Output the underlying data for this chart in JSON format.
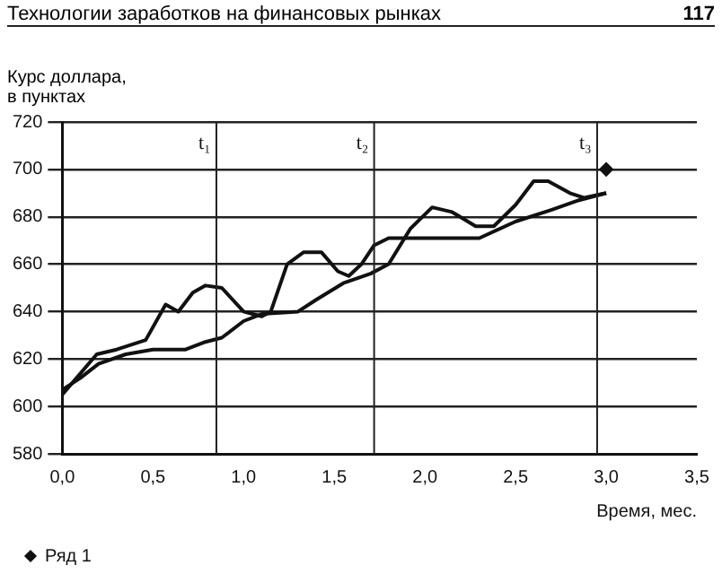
{
  "chart_data": {
    "type": "line",
    "title": "Технологии заработков на финансовых рынках",
    "annotations": [
      "117"
    ],
    "ylabel": "Курс доллара,\nв пунктах",
    "xlabel": "Время, мес.",
    "xlim": [
      0,
      3.5
    ],
    "xticks": [
      {
        "value": 0,
        "label": "0,0"
      },
      {
        "value": 0.5,
        "label": "0,5"
      },
      {
        "value": 1,
        "label": "1,0"
      },
      {
        "value": 1.5,
        "label": "1,5"
      },
      {
        "value": 2,
        "label": "2,0"
      },
      {
        "value": 2.5,
        "label": "2,5"
      },
      {
        "value": 3,
        "label": "3,0"
      },
      {
        "value": 3.5,
        "label": "3,5"
      }
    ],
    "ylim": [
      580,
      720
    ],
    "yticks": [
      580,
      600,
      620,
      640,
      660,
      680,
      700,
      720
    ],
    "grid": "y",
    "legend": "bottom left",
    "ref_lines": [
      {
        "axis": "x",
        "value": 0.85,
        "label": "t₁"
      },
      {
        "axis": "x",
        "value": 1.72,
        "label": "t₂"
      },
      {
        "axis": "x",
        "value": 2.95,
        "label": "t₃"
      }
    ],
    "series": [
      {
        "type": "line",
        "color": "#111111",
        "marker": "none",
        "x": [
          0,
          0.19,
          0.3,
          0.46,
          0.57,
          0.64,
          0.72,
          0.79,
          0.88,
          1.0,
          1.1,
          1.15,
          1.24,
          1.33,
          1.43,
          1.52,
          1.58,
          1.65,
          1.72,
          1.8,
          2.0,
          2.3,
          2.5,
          2.7,
          2.85,
          3.0
        ],
        "values": [
          605,
          622,
          624,
          628,
          643,
          640,
          648,
          651,
          650,
          640,
          638,
          640,
          660,
          665,
          665,
          657,
          655,
          660,
          668,
          671,
          671,
          671,
          678,
          683,
          687,
          690
        ]
      },
      {
        "type": "line",
        "color": "#111111",
        "marker": "none",
        "x": [
          0,
          0.1,
          0.2,
          0.35,
          0.5,
          0.68,
          0.78,
          0.88,
          1.0,
          1.1,
          1.3,
          1.4,
          1.55,
          1.7,
          1.8,
          1.92,
          2.04,
          2.15,
          2.28,
          2.38,
          2.5,
          2.6,
          2.68,
          2.8,
          2.88,
          3.0
        ],
        "values": [
          607,
          612,
          618,
          622,
          624,
          624,
          627,
          629,
          636,
          639,
          640,
          645,
          652,
          656,
          660,
          675,
          684,
          682,
          676,
          676,
          685,
          695,
          695,
          690,
          688,
          690
        ]
      },
      {
        "type": "scatter",
        "name": "Ряд 1",
        "color": "#111111",
        "marker": "diamond",
        "x": [
          3.0
        ],
        "values": [
          700
        ]
      }
    ]
  }
}
